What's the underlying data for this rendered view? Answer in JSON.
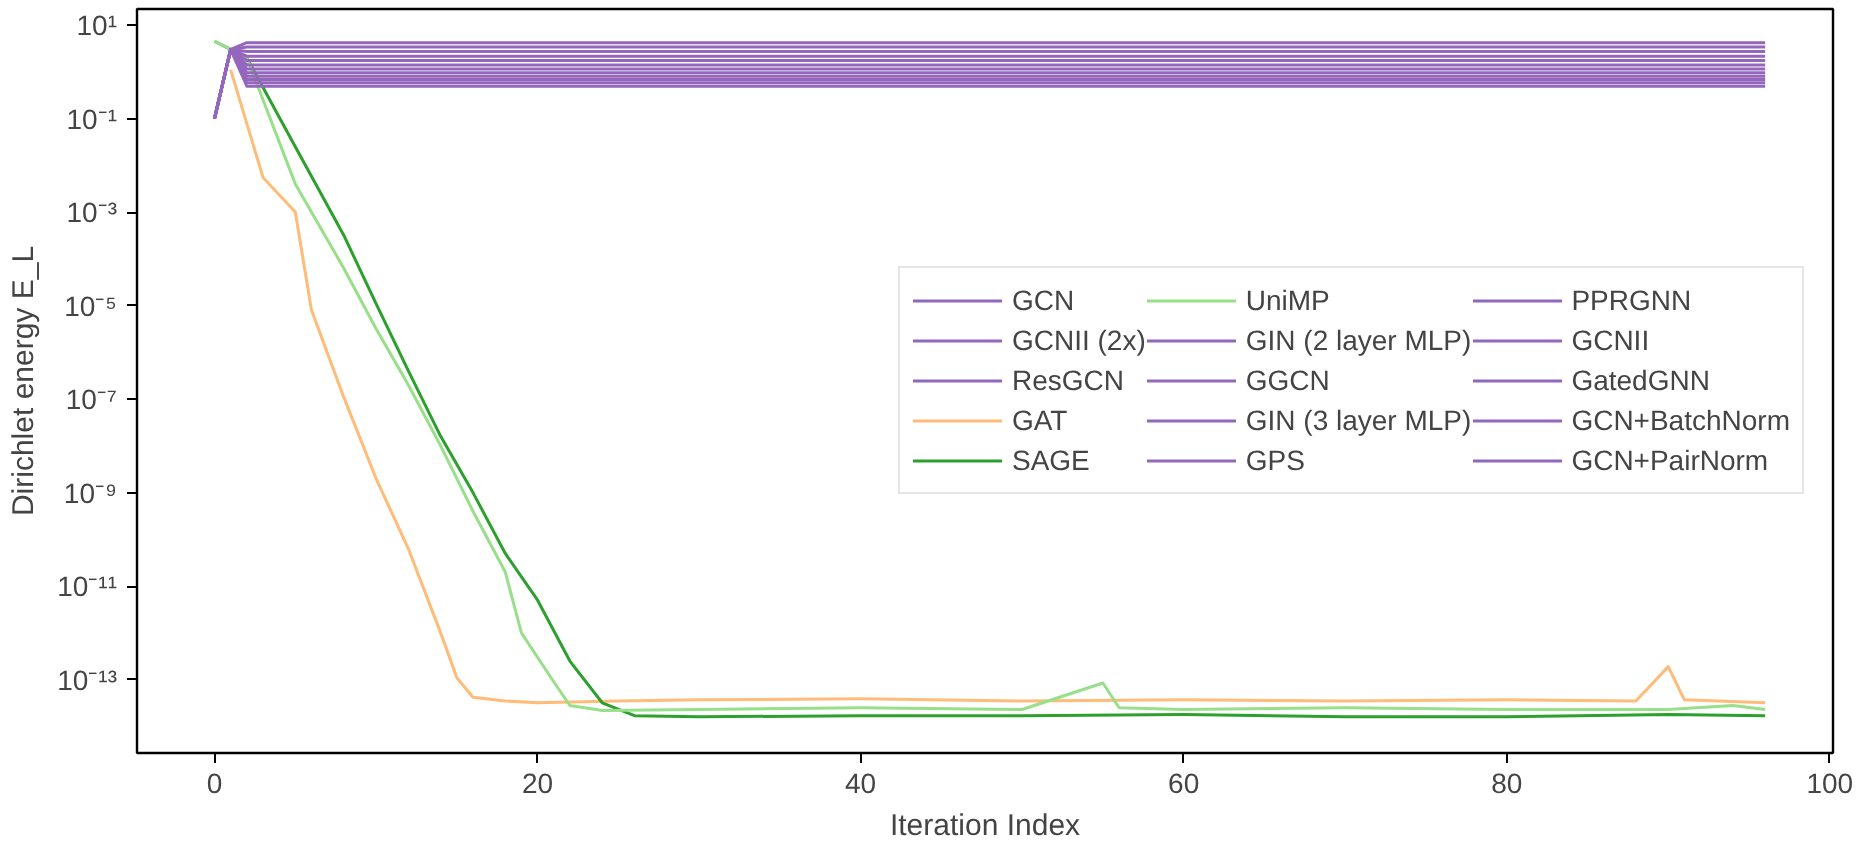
{
  "chart_data": {
    "type": "line",
    "xlabel": "Iteration Index",
    "ylabel": "Dirichlet energy E_L",
    "log": "y",
    "grid": false,
    "legend": "right",
    "marker": "none",
    "line_style": "solid",
    "xlim": [
      -4.8,
      100.2
    ],
    "xticks": [
      0,
      20,
      40,
      60,
      80,
      100
    ],
    "ylim": [
      2.7e-15,
      22
    ],
    "yticks": [
      {
        "value": 10,
        "label": "10¹"
      },
      {
        "value": 0.1,
        "label": "10⁻¹"
      },
      {
        "value": 0.001,
        "label": "10⁻³"
      },
      {
        "value": 1e-05,
        "label": "10⁻⁵"
      },
      {
        "value": 1e-07,
        "label": "10⁻⁷"
      },
      {
        "value": 1e-09,
        "label": "10⁻⁹"
      },
      {
        "value": 1e-11,
        "label": "10⁻¹¹"
      },
      {
        "value": 1e-13,
        "label": "10⁻¹³"
      }
    ],
    "x": [
      0,
      1,
      2,
      10,
      20,
      30,
      40,
      50,
      60,
      70,
      80,
      90,
      96
    ],
    "series": [
      {
        "name": "GCN",
        "color": "#9467bd",
        "values": [
          0.1,
          3,
          4.2,
          4.2,
          4.2,
          4.2,
          4.2,
          4.2,
          4.2,
          4.2,
          4.2,
          4.2,
          4.2
        ]
      },
      {
        "name": "GCNII (2x)",
        "color": "#9467bd",
        "values": [
          0.1,
          3,
          3.4,
          3.4,
          3.4,
          3.4,
          3.4,
          3.4,
          3.4,
          3.4,
          3.4,
          3.4,
          3.4
        ]
      },
      {
        "name": "ResGCN",
        "color": "#9467bd",
        "values": [
          0.1,
          3,
          2.7,
          2.7,
          2.7,
          2.7,
          2.7,
          2.7,
          2.7,
          2.7,
          2.7,
          2.7,
          2.7
        ]
      },
      {
        "name": "GAT",
        "color": "#ffbb78",
        "x": [
          1,
          3,
          5,
          6,
          8,
          10,
          12,
          14,
          15,
          16,
          18,
          20,
          25,
          30,
          40,
          50,
          60,
          70,
          80,
          88,
          90,
          91,
          96
        ],
        "values": [
          1.1,
          0.0055,
          0.001,
          8e-06,
          1.1e-07,
          2e-09,
          6.3e-11,
          1e-12,
          1.1e-13,
          4.2e-14,
          3.5e-14,
          3.2e-14,
          3.5e-14,
          3.7e-14,
          3.9e-14,
          3.5e-14,
          3.7e-14,
          3.5e-14,
          3.7e-14,
          3.5e-14,
          1.9e-13,
          3.7e-14,
          3.2e-14
        ]
      },
      {
        "name": "SAGE",
        "color": "#2ca02c",
        "x": [
          0,
          2,
          5,
          8,
          10,
          12,
          14,
          16,
          18,
          20,
          22,
          24,
          26,
          30,
          40,
          50,
          60,
          70,
          80,
          90,
          96
        ],
        "values": [
          4.5,
          2,
          0.025,
          0.00032,
          1.1e-05,
          4e-07,
          1.6e-08,
          1e-09,
          5e-11,
          5e-12,
          2.5e-13,
          3.2e-14,
          1.7e-14,
          1.6e-14,
          1.7e-14,
          1.7e-14,
          1.8e-14,
          1.6e-14,
          1.6e-14,
          1.8e-14,
          1.7e-14
        ]
      },
      {
        "name": "UniMP",
        "color": "#98df8a",
        "x": [
          0,
          2,
          5,
          8,
          10,
          12,
          14,
          16,
          18,
          19,
          21,
          22,
          24,
          30,
          40,
          50,
          55,
          56,
          60,
          70,
          80,
          90,
          94,
          96
        ],
        "values": [
          4.5,
          2,
          0.004,
          6.3e-05,
          3.2e-06,
          2e-07,
          1e-08,
          4e-10,
          2e-11,
          1e-12,
          9e-14,
          2.8e-14,
          2.2e-14,
          2.3e-14,
          2.5e-14,
          2.3e-14,
          8.5e-14,
          2.5e-14,
          2.3e-14,
          2.5e-14,
          2.3e-14,
          2.3e-14,
          2.8e-14,
          2.3e-14
        ]
      },
      {
        "name": "GIN (2 layer MLP)",
        "color": "#9467bd",
        "values": [
          0.1,
          3,
          2.15,
          2.15,
          2.15,
          2.15,
          2.15,
          2.15,
          2.15,
          2.15,
          2.15,
          2.15,
          2.15
        ]
      },
      {
        "name": "GGCN",
        "color": "#9467bd",
        "values": [
          0.1,
          3,
          1.75,
          1.75,
          1.75,
          1.75,
          1.75,
          1.75,
          1.75,
          1.75,
          1.75,
          1.75,
          1.75
        ]
      },
      {
        "name": "GIN (3 layer MLP)",
        "color": "#9467bd",
        "values": [
          0.1,
          3,
          1.4,
          1.4,
          1.4,
          1.4,
          1.4,
          1.4,
          1.4,
          1.4,
          1.4,
          1.4,
          1.4
        ]
      },
      {
        "name": "GPS",
        "color": "#9467bd",
        "values": [
          0.1,
          3,
          1.15,
          1.15,
          1.15,
          1.15,
          1.15,
          1.15,
          1.15,
          1.15,
          1.15,
          1.15,
          1.15
        ]
      },
      {
        "name": "PPRGNN",
        "color": "#9467bd",
        "values": [
          0.1,
          3,
          0.95,
          0.95,
          0.95,
          0.95,
          0.95,
          0.95,
          0.95,
          0.95,
          0.95,
          0.95,
          0.95
        ]
      },
      {
        "name": "GCNII",
        "color": "#9467bd",
        "values": [
          0.1,
          3,
          0.8,
          0.8,
          0.8,
          0.8,
          0.8,
          0.8,
          0.8,
          0.8,
          0.8,
          0.8,
          0.8
        ]
      },
      {
        "name": "GatedGNN",
        "color": "#9467bd",
        "values": [
          0.1,
          3,
          0.68,
          0.68,
          0.68,
          0.68,
          0.68,
          0.68,
          0.68,
          0.68,
          0.68,
          0.68,
          0.68
        ]
      },
      {
        "name": "GCN+BatchNorm",
        "color": "#9467bd",
        "values": [
          0.1,
          3,
          0.58,
          0.58,
          0.58,
          0.58,
          0.58,
          0.58,
          0.58,
          0.58,
          0.58,
          0.58,
          0.58
        ]
      },
      {
        "name": "GCN+PairNorm",
        "color": "#9467bd",
        "values": [
          0.1,
          3,
          0.49,
          0.49,
          0.49,
          0.49,
          0.49,
          0.49,
          0.49,
          0.49,
          0.49,
          0.49,
          0.49
        ]
      }
    ]
  }
}
